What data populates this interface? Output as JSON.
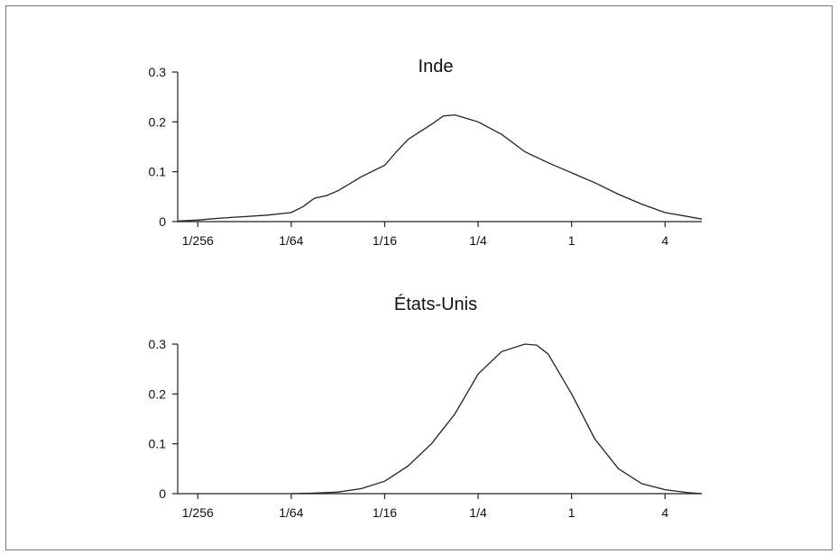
{
  "chart_data": [
    {
      "type": "line",
      "title": "Inde",
      "xscale": "log2",
      "xlim": [
        0.0029,
        6.9
      ],
      "ylim": [
        0,
        0.3
      ],
      "x_ticks": [
        "1/256",
        "1/64",
        "1/16",
        "1/4",
        "1",
        "4"
      ],
      "y_ticks": [
        "0",
        "0.1",
        "0.2",
        "0.3"
      ],
      "grid": false,
      "x": [
        0.0029,
        0.0039,
        0.0055,
        0.0078,
        0.011,
        0.0156,
        0.0186,
        0.0221,
        0.0263,
        0.0313,
        0.0442,
        0.0625,
        0.0743,
        0.0884,
        0.105,
        0.125,
        0.149,
        0.177,
        0.25,
        0.354,
        0.5,
        0.707,
        1.0,
        1.41,
        2.0,
        2.83,
        4.0,
        5.66,
        6.9
      ],
      "values": [
        0.001,
        0.003,
        0.007,
        0.01,
        0.013,
        0.018,
        0.03,
        0.047,
        0.052,
        0.062,
        0.09,
        0.113,
        0.14,
        0.165,
        0.18,
        0.195,
        0.212,
        0.214,
        0.2,
        0.175,
        0.14,
        0.118,
        0.098,
        0.078,
        0.055,
        0.035,
        0.018,
        0.01,
        0.005
      ]
    },
    {
      "type": "line",
      "title": "États-Unis",
      "xscale": "log2",
      "xlim": [
        0.0029,
        6.9
      ],
      "ylim": [
        0,
        0.3
      ],
      "x_ticks": [
        "1/256",
        "1/64",
        "1/16",
        "1/4",
        "1",
        "4"
      ],
      "y_ticks": [
        "0",
        "0.1",
        "0.2",
        "0.3"
      ],
      "grid": false,
      "x": [
        0.0156,
        0.022,
        0.031,
        0.044,
        0.0625,
        0.088,
        0.125,
        0.177,
        0.25,
        0.354,
        0.5,
        0.595,
        0.707,
        1.0,
        1.41,
        2.0,
        2.83,
        4.0,
        5.66,
        6.9
      ],
      "values": [
        0.0,
        0.001,
        0.003,
        0.01,
        0.025,
        0.055,
        0.1,
        0.16,
        0.24,
        0.285,
        0.3,
        0.298,
        0.28,
        0.2,
        0.11,
        0.05,
        0.02,
        0.008,
        0.002,
        0.0
      ]
    }
  ]
}
